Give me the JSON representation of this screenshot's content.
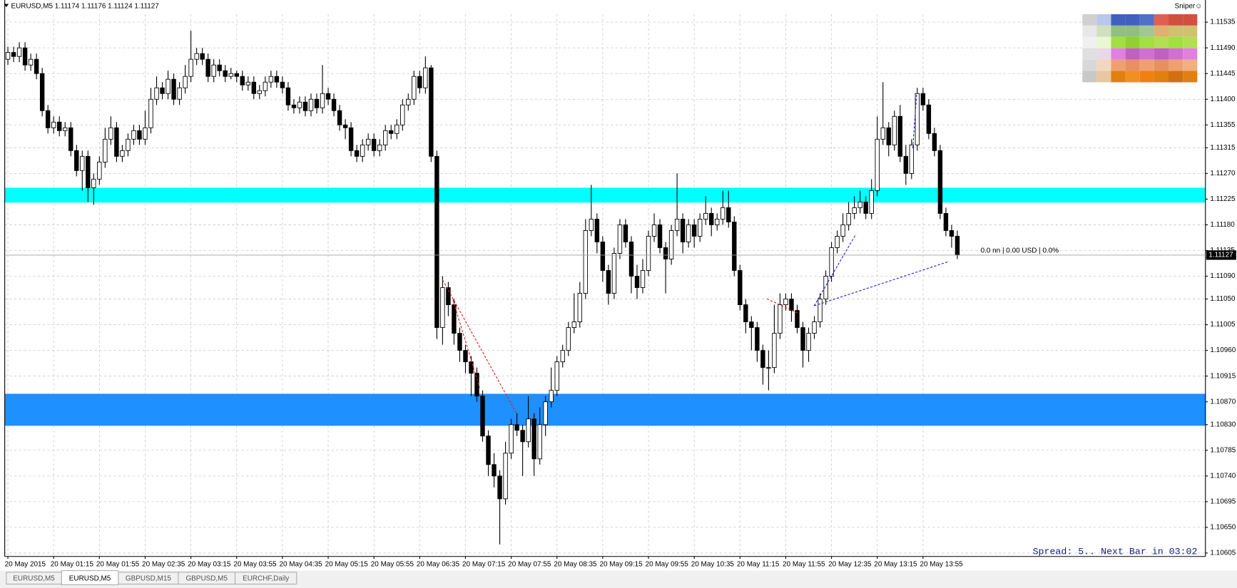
{
  "header": "EURUSD,M5  1.11174 1.11176 1.11124 1.11127",
  "indicator": "Sniper☺",
  "info": "0.0 nn | 0.00 USD | 0.0%",
  "status": "Spread: 5.. Next Bar in 03:02",
  "tabs": [
    "EURUSD,M5",
    "EURUSD,M5",
    "GBPUSD,M15",
    "GBPUSD,M5",
    "EURCHF,Daily"
  ],
  "active_tab": 1,
  "chart_data": {
    "type": "candlestick",
    "categories": [
      "20 May 2015",
      null,
      null,
      null,
      null,
      null,
      null,
      null,
      "20 May 01:15",
      null,
      null,
      null,
      null,
      null,
      null,
      null,
      "20 May 01:55",
      null,
      null,
      null,
      null,
      null,
      null,
      null,
      "20 May 02:35",
      null,
      null,
      null,
      null,
      null,
      null,
      null,
      "20 May 03:15",
      null,
      null,
      null,
      null,
      null,
      null,
      null,
      "20 May 03:55",
      null,
      null,
      null,
      null,
      null,
      null,
      null,
      "20 May 04:35",
      null,
      null,
      null,
      null,
      null,
      null,
      null,
      "20 May 05:15",
      null,
      null,
      null,
      null,
      null,
      null,
      null,
      "20 May 05:55",
      null,
      null,
      null,
      null,
      null,
      null,
      null,
      "20 May 06:35",
      null,
      null,
      null,
      null,
      null,
      null,
      null,
      "20 May 07:15",
      null,
      null,
      null,
      null,
      null,
      null,
      null,
      "20 May 07:55",
      null,
      null,
      null,
      null,
      null,
      null,
      null,
      "20 May 08:35",
      null,
      null,
      null,
      null,
      null,
      null,
      null,
      "20 May 09:15",
      null,
      null,
      null,
      null,
      null,
      null,
      null,
      "20 May 09:55",
      null,
      null,
      null,
      null,
      null,
      null,
      null,
      "20 May 10:35",
      null,
      null,
      null,
      null,
      null,
      null,
      null,
      "20 May 11:15",
      null,
      null,
      null,
      null,
      null,
      null,
      null,
      "20 May 11:55",
      null,
      null,
      null,
      null,
      null,
      null,
      null,
      "20 May 12:35",
      null,
      null,
      null,
      null,
      null,
      null,
      null,
      "20 May 13:15",
      null,
      null,
      null,
      null,
      null,
      null,
      null,
      "20 May 13:55",
      null,
      null,
      null,
      null,
      null,
      null
    ],
    "open": [
      1.1147,
      1.11482,
      1.11475,
      1.1149,
      1.1146,
      1.1147,
      1.11445,
      1.1138,
      1.1135,
      1.1136,
      1.11345,
      1.1135,
      1.1131,
      1.11275,
      1.113,
      1.11245,
      1.1126,
      1.1129,
      1.1133,
      1.1135,
      1.113,
      1.1131,
      1.1133,
      1.11345,
      1.1133,
      1.1135,
      1.114,
      1.1142,
      1.1141,
      1.11435,
      1.114,
      1.1142,
      1.1144,
      1.1147,
      1.1148,
      1.1147,
      1.1144,
      1.1146,
      1.1145,
      1.1144,
      1.11445,
      1.1144,
      1.11425,
      1.1143,
      1.1141,
      1.11415,
      1.1143,
      1.1144,
      1.1143,
      1.1142,
      1.1139,
      1.11385,
      1.11395,
      1.1138,
      1.114,
      1.11385,
      1.1141,
      1.114,
      1.1138,
      1.11355,
      1.1135,
      1.1131,
      1.113,
      1.1132,
      1.1133,
      1.1131,
      1.1132,
      1.11345,
      1.1134,
      1.11355,
      1.1139,
      1.114,
      1.1144,
      1.1142,
      1.11455,
      1.113,
      1.11,
      1.1107,
      1.1104,
      1.1099,
      1.1096,
      1.1094,
      1.1092,
      1.1088,
      1.1081,
      1.1076,
      1.1074,
      1.107,
      1.1078,
      1.1083,
      1.1082,
      1.108,
      1.1084,
      1.1077,
      1.1083,
      1.1087,
      1.1089,
      1.1094,
      1.1096,
      1.11,
      1.1101,
      1.1106,
      1.1117,
      1.1119,
      1.1115,
      1.111,
      1.1106,
      1.1113,
      1.1118,
      1.1115,
      1.1109,
      1.1107,
      1.111,
      1.1116,
      1.1118,
      1.1114,
      1.1112,
      1.1117,
      1.1119,
      1.1115,
      1.1118,
      1.1116,
      1.1119,
      1.112,
      1.1118,
      1.1119,
      1.1121,
      1.11185,
      1.111,
      1.1104,
      1.1101,
      1.11,
      1.1096,
      1.1093,
      1.1093,
      1.1099,
      1.1104,
      1.1105,
      1.1103,
      1.11,
      1.1096,
      1.1099,
      1.1101,
      1.1105,
      1.1109,
      1.1114,
      1.1116,
      1.1118,
      1.112,
      1.1121,
      1.1122,
      1.112,
      1.1124,
      1.1133,
      1.1135,
      1.1132,
      1.1137,
      1.113,
      1.1127,
      1.1132,
      1.1141,
      1.1139,
      1.1134,
      1.1131,
      1.112,
      1.1117,
      1.1116
    ],
    "high": [
      1.11492,
      1.11492,
      1.115,
      1.115,
      1.1148,
      1.1148,
      1.11455,
      1.1139,
      1.1137,
      1.1137,
      1.1136,
      1.1136,
      1.1132,
      1.1131,
      1.1131,
      1.1127,
      1.113,
      1.1135,
      1.1137,
      1.1136,
      1.1132,
      1.1134,
      1.11355,
      1.11355,
      1.1138,
      1.1142,
      1.1144,
      1.1143,
      1.1145,
      1.11445,
      1.1143,
      1.1146,
      1.1152,
      1.1149,
      1.1149,
      1.1148,
      1.1147,
      1.1147,
      1.1146,
      1.11455,
      1.1145,
      1.1145,
      1.1144,
      1.1144,
      1.11425,
      1.1144,
      1.1145,
      1.1145,
      1.1144,
      1.1143,
      1.114,
      1.11405,
      1.11405,
      1.1141,
      1.1141,
      1.1146,
      1.1142,
      1.1141,
      1.1139,
      1.11365,
      1.1136,
      1.1132,
      1.1133,
      1.1134,
      1.1134,
      1.1133,
      1.11355,
      1.11355,
      1.11365,
      1.114,
      1.1141,
      1.1145,
      1.1145,
      1.11475,
      1.1146,
      1.1131,
      1.1109,
      1.1108,
      1.1105,
      1.11,
      1.1097,
      1.1095,
      1.1093,
      1.1089,
      1.1082,
      1.1078,
      1.1075,
      1.108,
      1.1084,
      1.1085,
      1.1083,
      1.1088,
      1.1085,
      1.1086,
      1.1088,
      1.1093,
      1.1095,
      1.1097,
      1.1101,
      1.1106,
      1.1108,
      1.1119,
      1.1125,
      1.112,
      1.1116,
      1.1111,
      1.1114,
      1.1119,
      1.1119,
      1.1116,
      1.1111,
      1.1112,
      1.1117,
      1.112,
      1.1119,
      1.1115,
      1.1118,
      1.1127,
      1.112,
      1.1119,
      1.1119,
      1.112,
      1.1123,
      1.1121,
      1.112,
      1.1124,
      1.1124,
      1.11195,
      1.1111,
      1.1105,
      1.1102,
      1.1101,
      1.1097,
      1.1096,
      1.1104,
      1.1106,
      1.1106,
      1.1106,
      1.1104,
      1.1101,
      1.11,
      1.1102,
      1.1106,
      1.111,
      1.1115,
      1.1117,
      1.112,
      1.1122,
      1.1123,
      1.1124,
      1.1123,
      1.1126,
      1.1137,
      1.1143,
      1.1136,
      1.1138,
      1.1139,
      1.1132,
      1.1133,
      1.1142,
      1.1142,
      1.114,
      1.1135,
      1.1132,
      1.1121,
      1.1118,
      1.1117
    ],
    "low": [
      1.1146,
      1.11465,
      1.11465,
      1.1145,
      1.1145,
      1.11435,
      1.1137,
      1.1134,
      1.1134,
      1.11335,
      1.11335,
      1.113,
      1.11265,
      1.1124,
      1.1122,
      1.11215,
      1.1125,
      1.1128,
      1.1132,
      1.1129,
      1.1129,
      1.113,
      1.1132,
      1.1132,
      1.1132,
      1.1134,
      1.1139,
      1.114,
      1.114,
      1.1139,
      1.1139,
      1.1141,
      1.1143,
      1.1146,
      1.1146,
      1.1143,
      1.1143,
      1.1144,
      1.1143,
      1.11435,
      1.1143,
      1.11415,
      1.11415,
      1.114,
      1.114,
      1.11405,
      1.1142,
      1.1142,
      1.1141,
      1.1138,
      1.11375,
      1.11375,
      1.1137,
      1.1137,
      1.11375,
      1.11375,
      1.1139,
      1.1137,
      1.11345,
      1.1133,
      1.113,
      1.1129,
      1.1129,
      1.1131,
      1.113,
      1.113,
      1.1131,
      1.1133,
      1.1133,
      1.11345,
      1.1138,
      1.1139,
      1.1141,
      1.1141,
      1.1129,
      1.1098,
      1.1097,
      1.1102,
      1.1097,
      1.1094,
      1.1092,
      1.1088,
      1.1087,
      1.108,
      1.1074,
      1.1072,
      1.1062,
      1.1069,
      1.1077,
      1.1081,
      1.1074,
      1.1079,
      1.1074,
      1.1076,
      1.1081,
      1.1086,
      1.1088,
      1.1093,
      1.1095,
      1.1099,
      1.11,
      1.1105,
      1.1116,
      1.1113,
      1.1108,
      1.1104,
      1.1105,
      1.1112,
      1.1114,
      1.1106,
      1.1105,
      1.1106,
      1.1109,
      1.1115,
      1.1113,
      1.1106,
      1.1111,
      1.1116,
      1.1113,
      1.1114,
      1.1114,
      1.1115,
      1.1118,
      1.1116,
      1.1117,
      1.1118,
      1.11175,
      1.1109,
      1.1103,
      1.1099,
      1.1096,
      1.1094,
      1.109,
      1.1089,
      1.1092,
      1.1098,
      1.1103,
      1.1101,
      1.1099,
      1.1093,
      1.1094,
      1.1098,
      1.11,
      1.1104,
      1.1108,
      1.1113,
      1.1115,
      1.1117,
      1.1119,
      1.112,
      1.1119,
      1.1119,
      1.1123,
      1.1132,
      1.113,
      1.1131,
      1.1129,
      1.1125,
      1.1126,
      1.1131,
      1.1138,
      1.1133,
      1.113,
      1.1119,
      1.1116,
      1.1114,
      1.1112
    ],
    "close": [
      1.11482,
      1.11475,
      1.1149,
      1.1146,
      1.1147,
      1.11445,
      1.1138,
      1.1135,
      1.1136,
      1.11345,
      1.1135,
      1.1131,
      1.11275,
      1.113,
      1.11245,
      1.1126,
      1.1129,
      1.1133,
      1.1135,
      1.113,
      1.1131,
      1.1133,
      1.11345,
      1.1133,
      1.1135,
      1.114,
      1.1142,
      1.1141,
      1.11435,
      1.114,
      1.1142,
      1.1144,
      1.1147,
      1.1148,
      1.1147,
      1.1144,
      1.1146,
      1.1145,
      1.1144,
      1.11445,
      1.1144,
      1.11425,
      1.1143,
      1.1141,
      1.11415,
      1.1143,
      1.1144,
      1.1143,
      1.1142,
      1.1139,
      1.11385,
      1.11395,
      1.1138,
      1.114,
      1.11385,
      1.1141,
      1.114,
      1.1138,
      1.11355,
      1.1135,
      1.1131,
      1.113,
      1.1132,
      1.1133,
      1.1131,
      1.1132,
      1.11345,
      1.1134,
      1.11355,
      1.1139,
      1.114,
      1.1144,
      1.1142,
      1.11455,
      1.113,
      1.11,
      1.1107,
      1.1104,
      1.1099,
      1.1096,
      1.1094,
      1.1092,
      1.1088,
      1.1081,
      1.1076,
      1.1074,
      1.107,
      1.1078,
      1.1083,
      1.1082,
      1.108,
      1.1084,
      1.1077,
      1.1083,
      1.1087,
      1.1089,
      1.1094,
      1.1096,
      1.11,
      1.1101,
      1.1106,
      1.1117,
      1.1119,
      1.1115,
      1.111,
      1.1106,
      1.1113,
      1.1118,
      1.1115,
      1.1109,
      1.1107,
      1.111,
      1.1116,
      1.1118,
      1.1114,
      1.1112,
      1.1117,
      1.1119,
      1.1115,
      1.1118,
      1.1116,
      1.1119,
      1.112,
      1.1118,
      1.1119,
      1.1121,
      1.11185,
      1.111,
      1.1104,
      1.1101,
      1.11,
      1.1096,
      1.1093,
      1.1093,
      1.1099,
      1.1104,
      1.1105,
      1.1103,
      1.11,
      1.1096,
      1.1099,
      1.1101,
      1.1105,
      1.1109,
      1.1114,
      1.1116,
      1.1118,
      1.112,
      1.1121,
      1.1122,
      1.112,
      1.1124,
      1.1133,
      1.1135,
      1.1132,
      1.1137,
      1.113,
      1.1127,
      1.1132,
      1.1141,
      1.1139,
      1.1134,
      1.1131,
      1.112,
      1.1117,
      1.1116,
      1.11127
    ],
    "up_color": "#ffffff",
    "down_color": "#000000",
    "ylim": [
      1.10599,
      1.11549
    ],
    "yticks": [
      1.11535,
      {
        "value": 1.1149,
        "label": "1.11490"
      },
      1.11445,
      {
        "value": 1.114,
        "label": "1.11400"
      },
      1.11355,
      1.11315,
      {
        "value": 1.1127,
        "label": "1.11270"
      },
      1.11225,
      {
        "value": 1.1118,
        "label": "1.11180"
      },
      1.11135,
      {
        "value": 1.1109,
        "label": "1.11090"
      },
      {
        "value": 1.1105,
        "label": "1.11050"
      },
      1.11005,
      {
        "value": 1.1096,
        "label": "1.10960"
      },
      1.10915,
      {
        "value": 1.1087,
        "label": "1.10870"
      },
      {
        "value": 1.1083,
        "label": "1.10830"
      },
      1.10785,
      {
        "value": 1.1074,
        "label": "1.10740"
      },
      1.10695,
      {
        "value": 1.1065,
        "label": "1.10650"
      },
      1.10605
    ],
    "grid": true,
    "bands": [
      {
        "from": 1.11219,
        "to": 1.11245,
        "color": "#00ffff"
      },
      {
        "from": 1.10828,
        "to": 1.10884,
        "color": "#1e90ff"
      }
    ],
    "last": 1.11127
  }
}
